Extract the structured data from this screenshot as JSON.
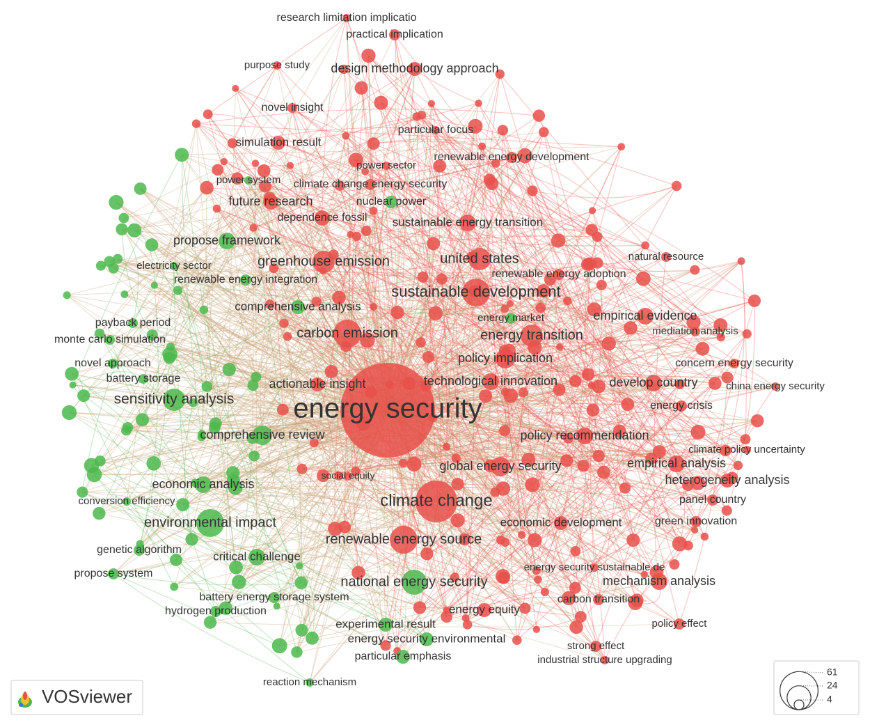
{
  "logo": "VOSviewer",
  "legend": {
    "values": [
      61,
      24,
      4
    ]
  },
  "clusters": [
    {
      "color": "#e8504a"
    },
    {
      "color": "#4cb84c"
    }
  ],
  "nodes": [
    {
      "label": "research limitation implicatio",
      "cluster": 0
    },
    {
      "label": "practical implication",
      "cluster": 0
    },
    {
      "label": "purpose study",
      "cluster": 0
    },
    {
      "label": "design methodology approach",
      "cluster": 0
    },
    {
      "label": "novel insight",
      "cluster": 0
    },
    {
      "label": "particular focus",
      "cluster": 0
    },
    {
      "label": "simulation result",
      "cluster": 0
    },
    {
      "label": "renewable energy development",
      "cluster": 0
    },
    {
      "label": "power sector",
      "cluster": 0
    },
    {
      "label": "power system",
      "cluster": 1
    },
    {
      "label": "climate change energy security",
      "cluster": 0
    },
    {
      "label": "future research",
      "cluster": 0
    },
    {
      "label": "nuclear power",
      "cluster": 1
    },
    {
      "label": "dependence fossil",
      "cluster": 0
    },
    {
      "label": "sustainable energy transition",
      "cluster": 0
    },
    {
      "label": "propose framework",
      "cluster": 1
    },
    {
      "label": "electricity sector",
      "cluster": 1
    },
    {
      "label": "greenhouse emission",
      "cluster": 0
    },
    {
      "label": "united states",
      "cluster": 0
    },
    {
      "label": "natural resource",
      "cluster": 0
    },
    {
      "label": "renewable energy integration",
      "cluster": 1
    },
    {
      "label": "renewable energy adoption",
      "cluster": 0
    },
    {
      "label": "sustainable development",
      "cluster": 0
    },
    {
      "label": "comprehensive analysis",
      "cluster": 1
    },
    {
      "label": "energy market",
      "cluster": 1
    },
    {
      "label": "empirical evidence",
      "cluster": 0
    },
    {
      "label": "payback period",
      "cluster": 1
    },
    {
      "label": "mediation analysis",
      "cluster": 0
    },
    {
      "label": "carbon emission",
      "cluster": 0
    },
    {
      "label": "monte carlo simulation",
      "cluster": 1
    },
    {
      "label": "energy transition",
      "cluster": 0
    },
    {
      "label": "policy implication",
      "cluster": 0
    },
    {
      "label": "novel approach",
      "cluster": 1
    },
    {
      "label": "concern energy security",
      "cluster": 0
    },
    {
      "label": "battery storage",
      "cluster": 1
    },
    {
      "label": "actionable insight",
      "cluster": 0
    },
    {
      "label": "technological innovation",
      "cluster": 0
    },
    {
      "label": "develop country",
      "cluster": 0
    },
    {
      "label": "china energy security",
      "cluster": 0
    },
    {
      "label": "energy security",
      "cluster": 0
    },
    {
      "label": "sensitivity analysis",
      "cluster": 1
    },
    {
      "label": "energy crisis",
      "cluster": 0
    },
    {
      "label": "comprehensive review",
      "cluster": 1
    },
    {
      "label": "policy recommendation",
      "cluster": 0
    },
    {
      "label": "climate policy uncertainty",
      "cluster": 0
    },
    {
      "label": "global energy security",
      "cluster": 0
    },
    {
      "label": "empirical analysis",
      "cluster": 0
    },
    {
      "label": "social equity",
      "cluster": 0
    },
    {
      "label": "heterogeneity analysis",
      "cluster": 0
    },
    {
      "label": "economic analysis",
      "cluster": 1
    },
    {
      "label": "conversion efficiency",
      "cluster": 1
    },
    {
      "label": "climate change",
      "cluster": 0
    },
    {
      "label": "panel country",
      "cluster": 0
    },
    {
      "label": "environmental impact",
      "cluster": 1
    },
    {
      "label": "economic development",
      "cluster": 0
    },
    {
      "label": "green innovation",
      "cluster": 0
    },
    {
      "label": "renewable energy source",
      "cluster": 0
    },
    {
      "label": "genetic algorithm",
      "cluster": 1
    },
    {
      "label": "critical challenge",
      "cluster": 1
    },
    {
      "label": "propose system",
      "cluster": 1
    },
    {
      "label": "energy security sustainable de",
      "cluster": 0
    },
    {
      "label": "national energy security",
      "cluster": 1
    },
    {
      "label": "mechanism analysis",
      "cluster": 0
    },
    {
      "label": "battery energy storage system",
      "cluster": 1
    },
    {
      "label": "carbon transition",
      "cluster": 0
    },
    {
      "label": "hydrogen production",
      "cluster": 1
    },
    {
      "label": "energy equity",
      "cluster": 0
    },
    {
      "label": "experimental result",
      "cluster": 1
    },
    {
      "label": "policy effect",
      "cluster": 0
    },
    {
      "label": "energy security environmental",
      "cluster": 1
    },
    {
      "label": "strong effect",
      "cluster": 0
    },
    {
      "label": "particular emphasis",
      "cluster": 1
    },
    {
      "label": "industrial structure upgrading",
      "cluster": 0
    },
    {
      "label": "reaction mechanism",
      "cluster": 1
    }
  ]
}
